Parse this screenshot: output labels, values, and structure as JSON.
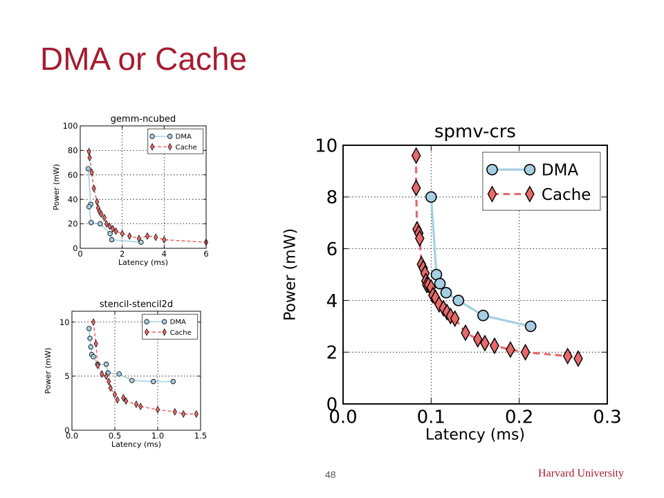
{
  "slide": {
    "title": "DMA or Cache",
    "page_number": "48",
    "footer": "Harvard University"
  },
  "colors": {
    "title": "#a51c30",
    "dma": "#a6cee3",
    "dma_marker": "#a6cee3",
    "cache": "#e8696b",
    "cache_marker": "#e8696b"
  },
  "chart_data": [
    {
      "id": "gemm",
      "type": "line",
      "title": "gemm-ncubed",
      "xlabel": "Latency (ms)",
      "ylabel": "Power (mW)",
      "xlim": [
        0,
        6
      ],
      "ylim": [
        0,
        100
      ],
      "xticks": [
        0,
        2,
        4,
        6
      ],
      "xtick_labels": [
        "0",
        "2",
        "4",
        "6"
      ],
      "yticks": [
        0,
        20,
        40,
        60,
        80,
        100
      ],
      "ytick_labels": [
        "0",
        "20",
        "40",
        "60",
        "80",
        "100"
      ],
      "grid": true,
      "legend": "top-right",
      "series": [
        {
          "name": "DMA",
          "marker": "circle",
          "x": [
            0.38,
            0.5,
            0.42,
            0.52,
            0.95,
            1.42,
            1.5,
            2.9
          ],
          "y": [
            65,
            36,
            34,
            21,
            20,
            12,
            7,
            5
          ]
        },
        {
          "name": "Cache",
          "marker": "diamond",
          "x": [
            0.42,
            0.45,
            0.55,
            0.65,
            0.8,
            0.85,
            0.92,
            1.0,
            1.15,
            1.25,
            1.4,
            1.55,
            1.7,
            2.0,
            2.35,
            2.8,
            3.2,
            3.6,
            4.0,
            6.0
          ],
          "y": [
            79,
            74,
            62,
            49,
            38,
            33,
            30,
            28,
            25,
            20,
            18,
            16,
            14,
            12,
            10,
            8,
            10,
            9,
            7,
            5
          ]
        }
      ]
    },
    {
      "id": "stencil",
      "type": "line",
      "title": "stencil-stencil2d",
      "xlabel": "Latency (ms)",
      "ylabel": "Power (mW)",
      "xlim": [
        0,
        1.5
      ],
      "ylim": [
        0,
        11
      ],
      "xticks": [
        0,
        0.5,
        1.0,
        1.5
      ],
      "xtick_labels": [
        "0.0",
        "0.5",
        "1.0",
        "1.5"
      ],
      "yticks": [
        0,
        5,
        10
      ],
      "ytick_labels": [
        "0",
        "5",
        "10"
      ],
      "grid": true,
      "legend": "top-right",
      "series": [
        {
          "name": "DMA",
          "marker": "circle",
          "x": [
            0.2,
            0.21,
            0.22,
            0.23,
            0.25,
            0.3,
            0.4,
            0.42,
            0.55,
            0.7,
            0.95,
            1.18
          ],
          "y": [
            9.4,
            8.5,
            7.7,
            7.0,
            6.8,
            6.1,
            6.1,
            5.3,
            5.2,
            4.6,
            4.5,
            4.5
          ]
        },
        {
          "name": "Cache",
          "marker": "diamond",
          "x": [
            0.25,
            0.28,
            0.3,
            0.35,
            0.4,
            0.43,
            0.45,
            0.5,
            0.53,
            0.6,
            0.63,
            0.75,
            0.8,
            1.0,
            1.2,
            1.3,
            1.45
          ],
          "y": [
            10.0,
            8.0,
            6.0,
            5.2,
            5.0,
            4.5,
            3.9,
            3.3,
            2.8,
            3.0,
            2.7,
            2.4,
            2.2,
            1.9,
            1.7,
            1.5,
            1.5
          ]
        }
      ]
    },
    {
      "id": "spmv",
      "type": "line",
      "title": "spmv-crs",
      "xlabel": "Latency (ms)",
      "ylabel": "Power (mW)",
      "xlim": [
        0,
        0.3
      ],
      "ylim": [
        0,
        10
      ],
      "xticks": [
        0,
        0.1,
        0.2,
        0.3
      ],
      "xtick_labels": [
        "0.0",
        "0.1",
        "0.2",
        "0.3"
      ],
      "yticks": [
        0,
        2,
        4,
        6,
        8,
        10
      ],
      "ytick_labels": [
        "0",
        "2",
        "4",
        "6",
        "8",
        "10"
      ],
      "grid": true,
      "legend": "top-right",
      "series": [
        {
          "name": "DMA",
          "marker": "circle",
          "x": [
            0.1,
            0.106,
            0.11,
            0.117,
            0.131,
            0.159,
            0.213
          ],
          "y": [
            8.0,
            5.0,
            4.65,
            4.3,
            4.0,
            3.42,
            3.0
          ]
        },
        {
          "name": "Cache",
          "marker": "diamond",
          "x": [
            0.083,
            0.083,
            0.084,
            0.086,
            0.087,
            0.089,
            0.091,
            0.093,
            0.094,
            0.095,
            0.097,
            0.1,
            0.102,
            0.105,
            0.109,
            0.114,
            0.118,
            0.122,
            0.127,
            0.139,
            0.153,
            0.161,
            0.172,
            0.19,
            0.207,
            0.255,
            0.267
          ],
          "y": [
            9.6,
            8.35,
            6.75,
            6.6,
            6.4,
            5.4,
            5.25,
            5.05,
            4.75,
            4.6,
            4.6,
            4.5,
            4.2,
            4.1,
            3.85,
            3.7,
            3.55,
            3.4,
            3.3,
            2.75,
            2.5,
            2.35,
            2.25,
            2.1,
            2.0,
            1.85,
            1.75
          ]
        }
      ]
    }
  ]
}
